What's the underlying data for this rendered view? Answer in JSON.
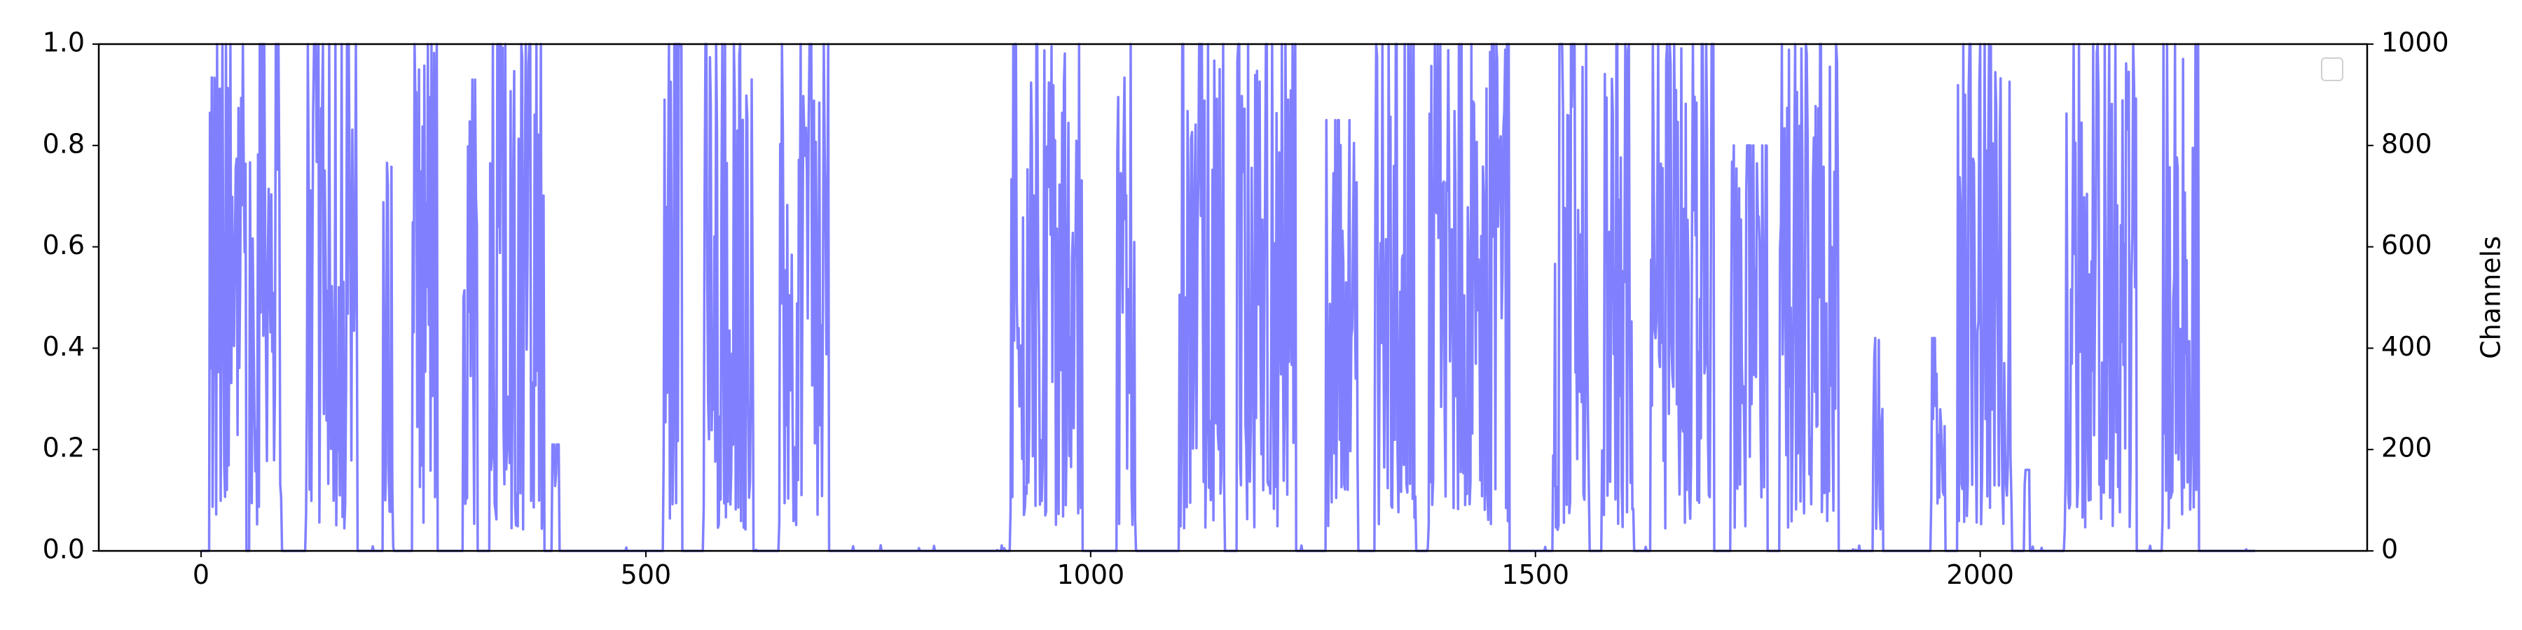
{
  "chart_data": {
    "type": "line",
    "title": "",
    "xlabel": "",
    "ylabel_left": "",
    "ylabel_right": "Channels",
    "xlim": [
      -115,
      2435
    ],
    "ylim_left": [
      0,
      1.0
    ],
    "ylim_right": [
      0,
      1000
    ],
    "x_ticks": [
      0,
      500,
      1000,
      1500,
      2000
    ],
    "x_tick_labels": [
      "0",
      "500",
      "1000",
      "1500",
      "2000"
    ],
    "y_left_ticks": [
      0.0,
      0.2,
      0.4,
      0.6,
      0.8,
      1.0
    ],
    "y_left_tick_labels": [
      "0.0",
      "0.2",
      "0.4",
      "0.6",
      "0.8",
      "1.0"
    ],
    "y_right_ticks": [
      0,
      200,
      400,
      600,
      800,
      1000
    ],
    "y_right_tick_labels": [
      "0",
      "200",
      "400",
      "600",
      "800",
      "1000"
    ],
    "grid": false,
    "legend": {
      "placement": "top-right",
      "entries": []
    },
    "series": [
      {
        "color": "#8080ff",
        "axis": "left",
        "bursts": [
          {
            "start": 10,
            "end": 50,
            "peak": 1.0
          },
          {
            "start": 55,
            "end": 90,
            "peak": 1.0
          },
          {
            "start": 118,
            "end": 175,
            "peak": 1.0
          },
          {
            "start": 205,
            "end": 215,
            "peak": 0.87
          },
          {
            "start": 238,
            "end": 265,
            "peak": 1.0
          },
          {
            "start": 295,
            "end": 310,
            "peak": 0.93
          },
          {
            "start": 325,
            "end": 385,
            "peak": 1.0
          },
          {
            "start": 395,
            "end": 402,
            "peak": 0.21
          },
          {
            "start": 520,
            "end": 540,
            "peak": 1.0
          },
          {
            "start": 565,
            "end": 620,
            "peak": 1.0
          },
          {
            "start": 650,
            "end": 705,
            "peak": 1.0
          },
          {
            "start": 910,
            "end": 990,
            "peak": 1.0
          },
          {
            "start": 1030,
            "end": 1050,
            "peak": 1.0
          },
          {
            "start": 1100,
            "end": 1150,
            "peak": 1.0
          },
          {
            "start": 1165,
            "end": 1230,
            "peak": 1.0
          },
          {
            "start": 1265,
            "end": 1300,
            "peak": 0.85
          },
          {
            "start": 1320,
            "end": 1365,
            "peak": 1.0
          },
          {
            "start": 1380,
            "end": 1470,
            "peak": 1.0
          },
          {
            "start": 1520,
            "end": 1560,
            "peak": 1.0
          },
          {
            "start": 1575,
            "end": 1610,
            "peak": 1.0
          },
          {
            "start": 1630,
            "end": 1700,
            "peak": 1.0
          },
          {
            "start": 1720,
            "end": 1760,
            "peak": 0.8
          },
          {
            "start": 1775,
            "end": 1840,
            "peak": 1.0
          },
          {
            "start": 1880,
            "end": 1890,
            "peak": 0.42
          },
          {
            "start": 1945,
            "end": 1960,
            "peak": 0.42
          },
          {
            "start": 1975,
            "end": 2035,
            "peak": 1.0
          },
          {
            "start": 2050,
            "end": 2055,
            "peak": 0.16
          },
          {
            "start": 2095,
            "end": 2175,
            "peak": 1.0
          },
          {
            "start": 2205,
            "end": 2245,
            "peak": 1.0
          }
        ],
        "n_points": 2310
      }
    ]
  }
}
